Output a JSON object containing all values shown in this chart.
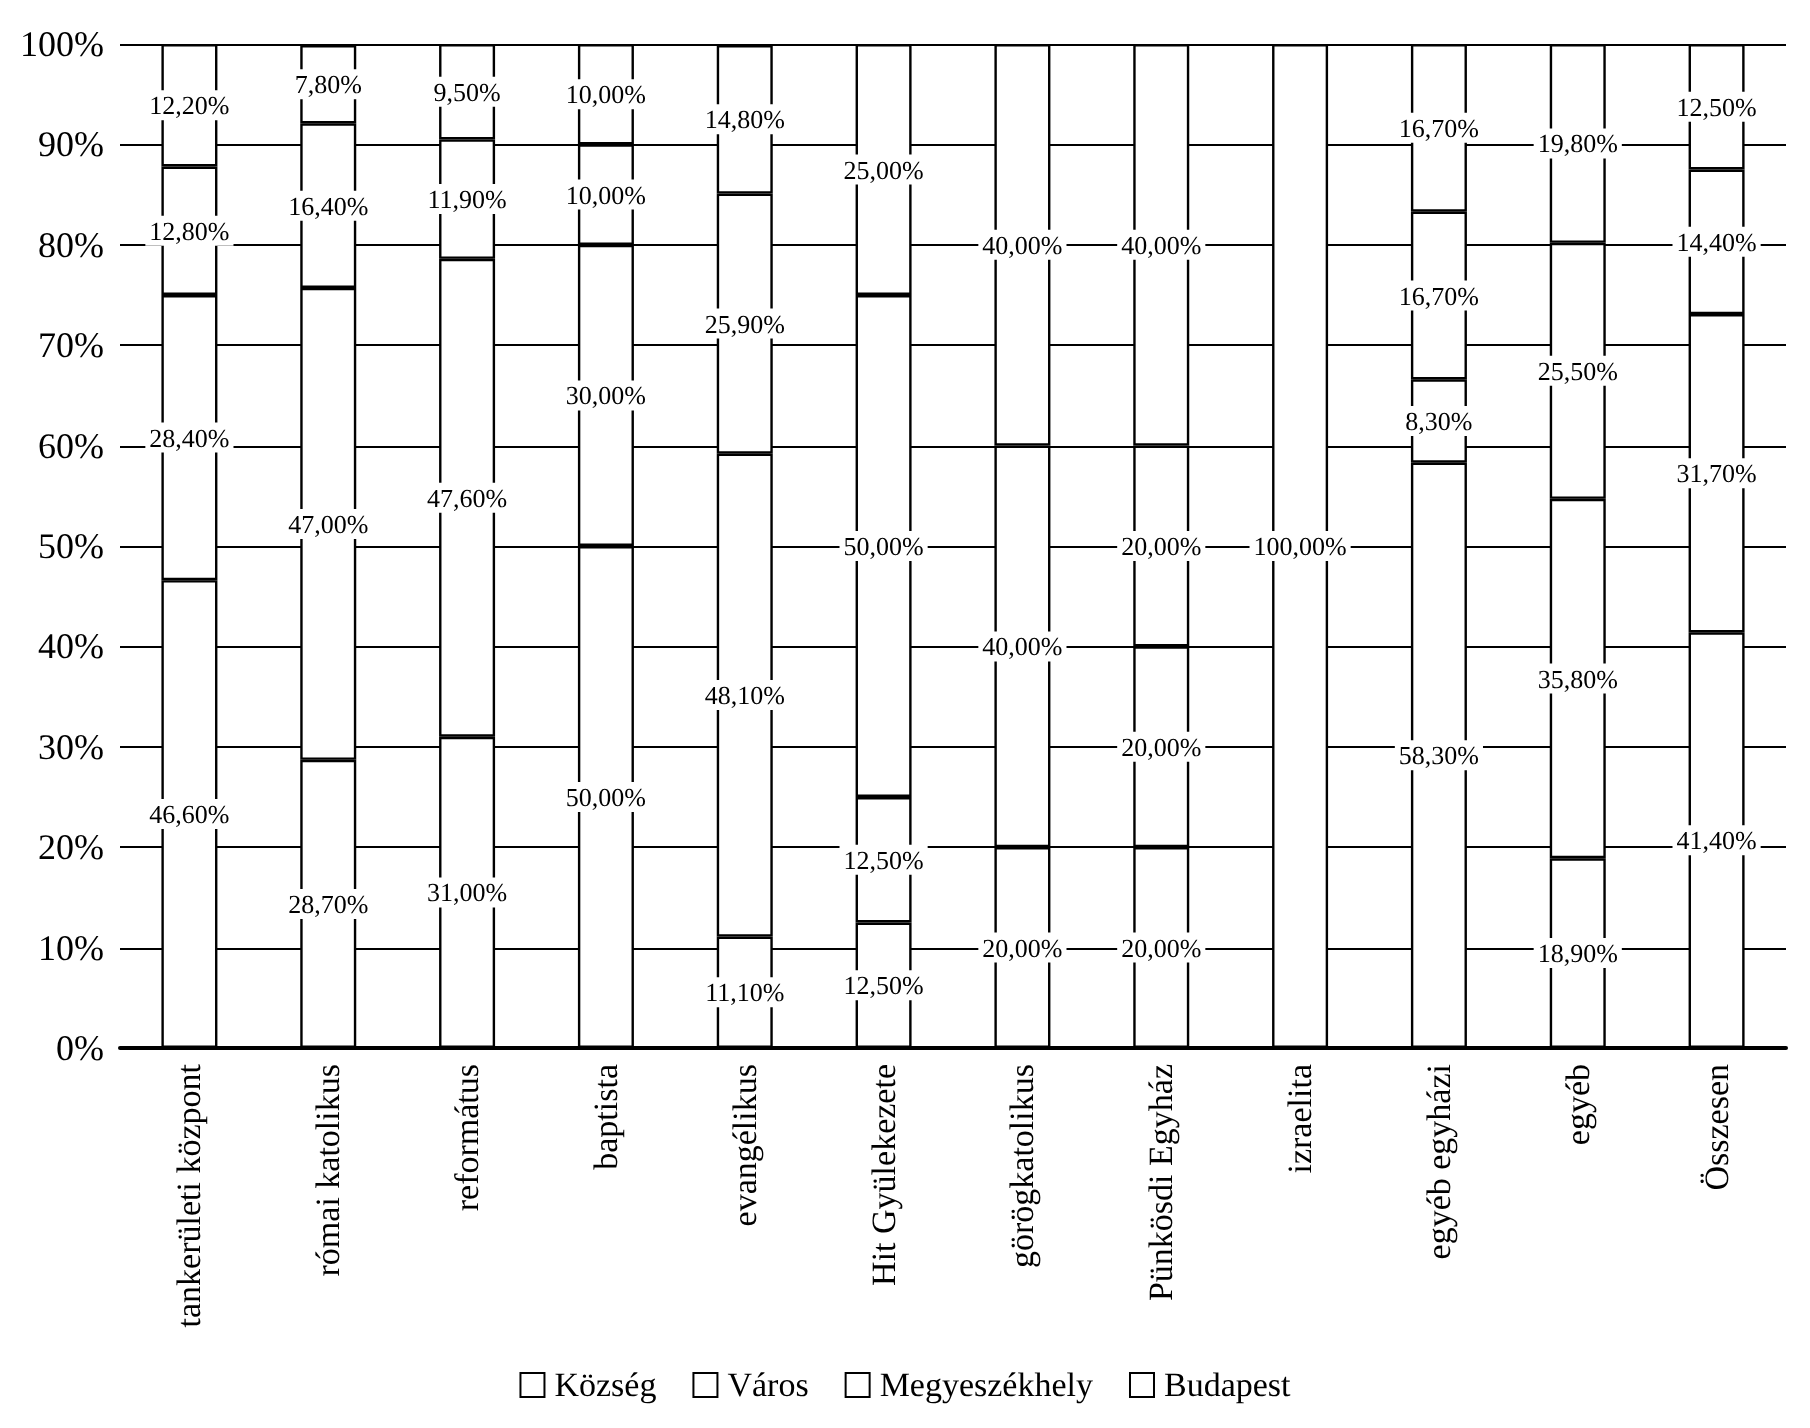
{
  "chart_data": {
    "type": "bar",
    "stacked": true,
    "categories": [
      "tankerületi központ",
      "római katolikus",
      "református",
      "baptista",
      "evangélikus",
      "Hit Gyülekezete",
      "görögkatolikus",
      "Pünkösdi Egyház",
      "izraelita",
      "egyéb egyházi",
      "egyéb",
      "Összesen"
    ],
    "series": [
      {
        "name": "Község",
        "color": "#ffffff",
        "values": [
          46.6,
          28.7,
          31.0,
          50,
          11.1,
          12.5,
          20,
          20,
          null,
          58.3,
          18.9,
          41.4
        ],
        "value_labels": [
          "46,60%",
          "28,70%",
          "31,00%",
          "50,00%",
          "11,10%",
          "12,50%",
          "20,00%",
          "20,00%",
          null,
          "58,30%",
          "18,90%",
          "41,40%"
        ]
      },
      {
        "name": "Város",
        "color": "#ffffff",
        "values": [
          28.4,
          47.0,
          47.6,
          30,
          48.1,
          12.5,
          40,
          20,
          null,
          8.3,
          35.8,
          31.7
        ],
        "value_labels": [
          "28,40%",
          "47,00%",
          "47,60%",
          "30,00%",
          "48,10%",
          "12,50%",
          "40,00%",
          "20,00%",
          null,
          "8,30%",
          "35,80%",
          "31,70%"
        ]
      },
      {
        "name": "Megyeszékhely",
        "color": "#ffffff",
        "values": [
          12.8,
          16.4,
          11.9,
          10,
          25.9,
          50,
          40,
          20,
          null,
          16.7,
          25.5,
          14.4
        ],
        "value_labels": [
          "12,80%",
          "16,40%",
          "11,90%",
          "10,00%",
          "25,90%",
          "50,00%",
          "40,00%",
          "20,00%",
          null,
          "16,70%",
          "25,50%",
          "14,40%"
        ]
      },
      {
        "name": "Budapest",
        "color": "#ffffff",
        "values": [
          12.2,
          7.8,
          9.5,
          10,
          14.8,
          25,
          null,
          40,
          100,
          16.7,
          19.8,
          12.5
        ],
        "value_labels": [
          "12,20%",
          "7,80%",
          "9,50%",
          "10,00%",
          "14,80%",
          "25,00%",
          null,
          "40,00%",
          "100,00%",
          "16,70%",
          "19,80%",
          "12,50%"
        ]
      }
    ],
    "ylim": [
      0,
      100
    ],
    "yticks": [
      {
        "value": 0,
        "label": "0%"
      },
      {
        "value": 10,
        "label": "10%"
      },
      {
        "value": 20,
        "label": "20%"
      },
      {
        "value": 30,
        "label": "30%"
      },
      {
        "value": 40,
        "label": "40%"
      },
      {
        "value": 50,
        "label": "50%"
      },
      {
        "value": 60,
        "label": "60%"
      },
      {
        "value": 70,
        "label": "70%"
      },
      {
        "value": 80,
        "label": "80%"
      },
      {
        "value": 90,
        "label": "90%"
      },
      {
        "value": 100,
        "label": "100%"
      }
    ],
    "grid": "y",
    "legend": "bottom"
  }
}
